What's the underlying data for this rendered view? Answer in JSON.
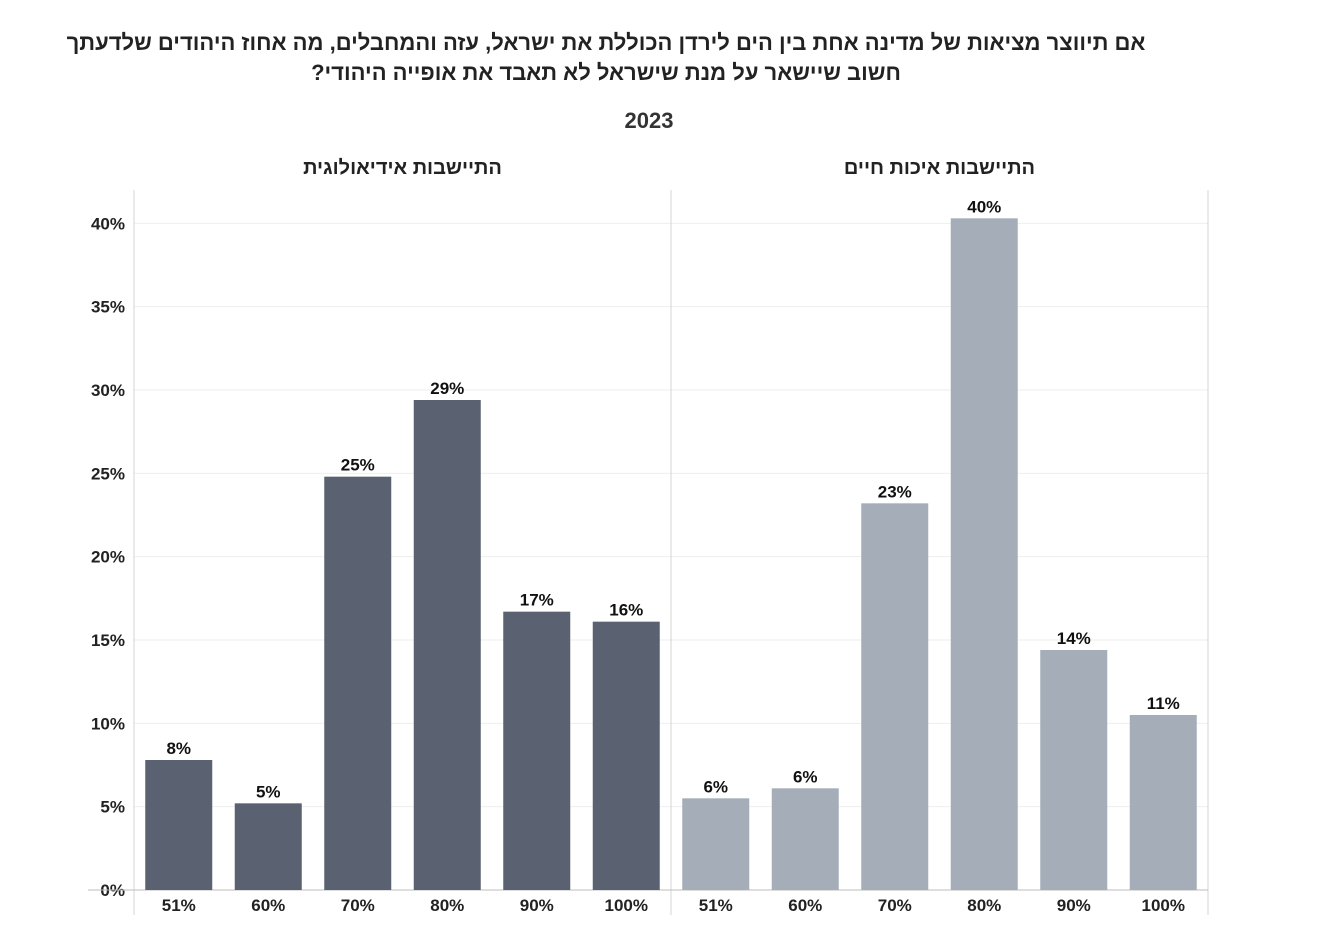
{
  "title_lines": [
    "אם תיווצר מציאות של מדינה אחת בין הים לירדן הכוללת את ישראל,  עזה והמחבלים, מה אחוז היהודים שלדעתך",
    "חשוב שיישאר על מנת שישראל לא תאבד את אופייה היהודי?"
  ],
  "subtitle": "2023",
  "colors": {
    "ideological": "#5a6170",
    "quality": "#a4adb8"
  },
  "chart_data": {
    "type": "bar",
    "ylim": [
      0,
      42
    ],
    "yticks": [
      0,
      5,
      10,
      15,
      20,
      25,
      30,
      35,
      40
    ],
    "ytick_labels": [
      "0%",
      "5%",
      "10%",
      "15%",
      "20%",
      "25%",
      "30%",
      "35%",
      "40%"
    ],
    "categories": [
      "51%",
      "60%",
      "70%",
      "80%",
      "90%",
      "100%"
    ],
    "panels": [
      {
        "title": "התיישבות אידיאולוגית",
        "values": [
          7.8,
          5.2,
          24.8,
          29.4,
          16.7,
          16.1
        ],
        "labels": [
          "8%",
          "5%",
          "25%",
          "29%",
          "17%",
          "16%"
        ]
      },
      {
        "title": "התיישבות איכות חיים",
        "values": [
          5.5,
          6.1,
          23.2,
          40.3,
          14.4,
          10.5
        ],
        "labels": [
          "6%",
          "6%",
          "23%",
          "40%",
          "14%",
          "11%"
        ]
      }
    ]
  }
}
